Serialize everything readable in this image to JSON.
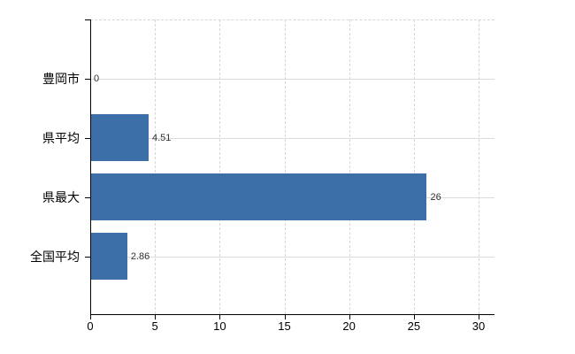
{
  "chart_data": {
    "type": "bar",
    "orientation": "horizontal",
    "title": "",
    "xlabel": "",
    "ylabel": "",
    "categories": [
      "豊岡市",
      "県平均",
      "県最大",
      "全国平均"
    ],
    "values": [
      0,
      4.51,
      26,
      2.86
    ],
    "value_labels": [
      "0",
      "4.51",
      "26",
      "2.86"
    ],
    "x_ticks": [
      0,
      5,
      10,
      15,
      20,
      25,
      30
    ],
    "x_tick_labels": [
      "0",
      "5",
      "10",
      "15",
      "20",
      "25",
      "30"
    ],
    "xlim": [
      0,
      31.2
    ],
    "legend": "none",
    "grid": {
      "vertical": "dashed at each x tick",
      "horizontal": "solid at each category center",
      "top_border": "dashed"
    }
  },
  "colors": {
    "bar_fill": "#3c6ea7",
    "axis": "#000000",
    "grid_solid": "#dcdcdc",
    "grid_dashed": "#d6d6d6",
    "value_text": "#333333",
    "label_text": "#000000",
    "background": "#ffffff"
  }
}
